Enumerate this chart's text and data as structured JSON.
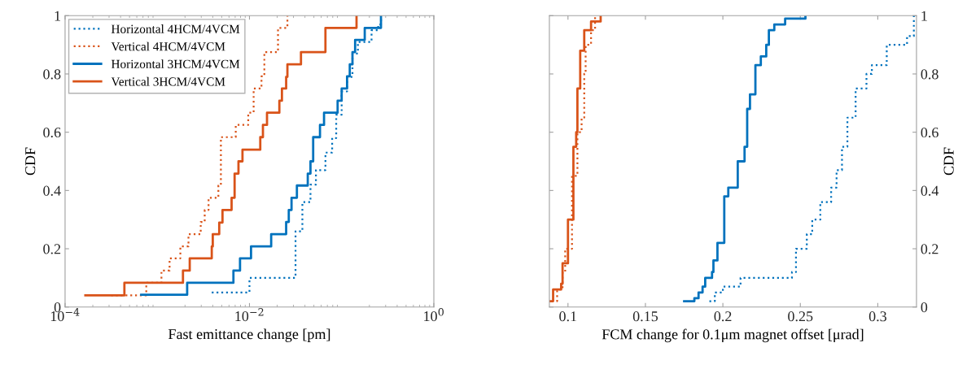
{
  "chart_data": [
    {
      "type": "step",
      "xlabel": "Fast emittance change [pm]",
      "ylabel": "CDF",
      "log": "x",
      "xlim": [
        0.0001,
        1
      ],
      "xticks": [
        {
          "value": 0.0001,
          "label": "10$^{−4}$"
        },
        {
          "value": 0.01,
          "label": "10$^{−2}$"
        },
        {
          "value": 1,
          "label": "10$^{0}$"
        }
      ],
      "ylim": [
        0,
        1
      ],
      "yticks": [
        0,
        0.2,
        0.4,
        0.6,
        0.8,
        1
      ],
      "grid": false,
      "legend": "top left",
      "series": [
        {
          "name": "Horizontal 4HCM/4VCM",
          "color": "#0072bd",
          "line_style": "dotted",
          "x": [
            0.0039,
            0.01,
            0.0316,
            0.0375,
            0.0459,
            0.0526,
            0.0667,
            0.0789,
            0.0873,
            0.1,
            0.1145,
            0.131,
            0.15,
            0.211,
            0.249,
            0.267
          ],
          "values": [
            0.05,
            0.1,
            0.26,
            0.36,
            0.42,
            0.47,
            0.53,
            0.58,
            0.66,
            0.74,
            0.79,
            0.87,
            0.91,
            0.95,
            0.97,
            1.0
          ]
        },
        {
          "name": "Vertical 4HCM/4VCM",
          "color": "#d95319",
          "line_style": "dotted",
          "x": [
            0.000316,
            0.00076,
            0.00111,
            0.00136,
            0.00178,
            0.00218,
            0.00296,
            0.00327,
            0.0036,
            0.0046,
            0.0049,
            0.0071,
            0.0097,
            0.0111,
            0.0135,
            0.0145,
            0.0204,
            0.0258
          ],
          "values": [
            0.04,
            0.083,
            0.125,
            0.167,
            0.208,
            0.25,
            0.292,
            0.333,
            0.375,
            0.417,
            0.583,
            0.625,
            0.667,
            0.75,
            0.792,
            0.875,
            0.958,
            1.0
          ]
        },
        {
          "name": "Horizontal 3HCM/4VCM",
          "color": "#0072bd",
          "line_style": "solid",
          "x": [
            0.00067,
            0.00211,
            0.0067,
            0.0079,
            0.0104,
            0.0172,
            0.025,
            0.0267,
            0.0286,
            0.0327,
            0.0429,
            0.0459,
            0.0491,
            0.0582,
            0.0644,
            0.0904,
            0.1,
            0.1145,
            0.1225,
            0.131,
            0.14,
            0.178,
            0.267
          ],
          "values": [
            0.042,
            0.083,
            0.125,
            0.167,
            0.208,
            0.25,
            0.292,
            0.333,
            0.375,
            0.417,
            0.458,
            0.5,
            0.583,
            0.625,
            0.667,
            0.708,
            0.75,
            0.792,
            0.833,
            0.875,
            0.917,
            0.958,
            1.0
          ]
        },
        {
          "name": "Vertical 3HCM/4VCM",
          "color": "#d95319",
          "line_style": "solid",
          "x": [
            0.000166,
            0.00044,
            0.0019,
            0.00225,
            0.0039,
            0.004,
            0.0047,
            0.0051,
            0.0064,
            0.0069,
            0.0076,
            0.0084,
            0.0131,
            0.014,
            0.0155,
            0.0211,
            0.0225,
            0.025,
            0.0258,
            0.0362,
            0.0667,
            0.145
          ],
          "values": [
            0.04,
            0.083,
            0.125,
            0.167,
            0.208,
            0.25,
            0.29,
            0.333,
            0.375,
            0.458,
            0.5,
            0.54,
            0.583,
            0.625,
            0.667,
            0.708,
            0.75,
            0.79,
            0.833,
            0.875,
            0.958,
            1.0
          ]
        }
      ]
    },
    {
      "type": "step",
      "xlabel": "FCM change for 0.1μm magnet offset [μrad]",
      "y2label": "CDF",
      "xlim": [
        0.088,
        0.325
      ],
      "xticks": [
        0.1,
        0.15,
        0.2,
        0.25,
        0.3
      ],
      "y2lim": [
        0,
        1
      ],
      "y2ticks": [
        0,
        0.2,
        0.4,
        0.6,
        0.8,
        1
      ],
      "grid": false,
      "series": [
        {
          "color": "#0072bd",
          "line_style": "dotted",
          "axis": "y2",
          "x": [
            0.1913,
            0.1948,
            0.2,
            0.2114,
            0.2446,
            0.2472,
            0.2542,
            0.2577,
            0.2629,
            0.2699,
            0.2734,
            0.2769,
            0.2804,
            0.2857,
            0.2927,
            0.2962,
            0.3058,
            0.3189,
            0.3233
          ],
          "values": [
            0.02,
            0.05,
            0.07,
            0.1,
            0.12,
            0.2,
            0.25,
            0.3,
            0.36,
            0.41,
            0.47,
            0.55,
            0.65,
            0.75,
            0.8,
            0.83,
            0.9,
            0.93,
            1.0
          ]
        },
        {
          "color": "#d95319",
          "line_style": "dotted",
          "axis": "y2",
          "x": [
            0.0895,
            0.093,
            0.0965,
            0.0982,
            0.1026,
            0.1061,
            0.1088,
            0.1105,
            0.1114,
            0.1149,
            0.1175
          ],
          "values": [
            0.02,
            0.06,
            0.12,
            0.2,
            0.45,
            0.6,
            0.65,
            0.8,
            0.9,
            0.95,
            1.0
          ]
        },
        {
          "color": "#0072bd",
          "line_style": "solid",
          "axis": "y2",
          "x": [
            0.175,
            0.1816,
            0.1843,
            0.1869,
            0.1886,
            0.193,
            0.1939,
            0.1965,
            0.2009,
            0.2035,
            0.2096,
            0.214,
            0.2157,
            0.2175,
            0.221,
            0.2245,
            0.228,
            0.2297,
            0.2332,
            0.2402,
            0.2533
          ],
          "values": [
            0.02,
            0.03,
            0.05,
            0.07,
            0.1,
            0.12,
            0.16,
            0.22,
            0.38,
            0.41,
            0.5,
            0.55,
            0.68,
            0.73,
            0.83,
            0.86,
            0.9,
            0.95,
            0.97,
            0.99,
            1.0
          ]
        },
        {
          "color": "#d95319",
          "line_style": "solid",
          "axis": "y2",
          "x": [
            0.0886,
            0.0904,
            0.0956,
            0.0965,
            0.1,
            0.1035,
            0.1053,
            0.1061,
            0.1079,
            0.1105,
            0.1149,
            0.1211
          ],
          "values": [
            0.02,
            0.06,
            0.08,
            0.15,
            0.3,
            0.55,
            0.6,
            0.75,
            0.88,
            0.95,
            0.98,
            1.0
          ]
        }
      ]
    }
  ]
}
